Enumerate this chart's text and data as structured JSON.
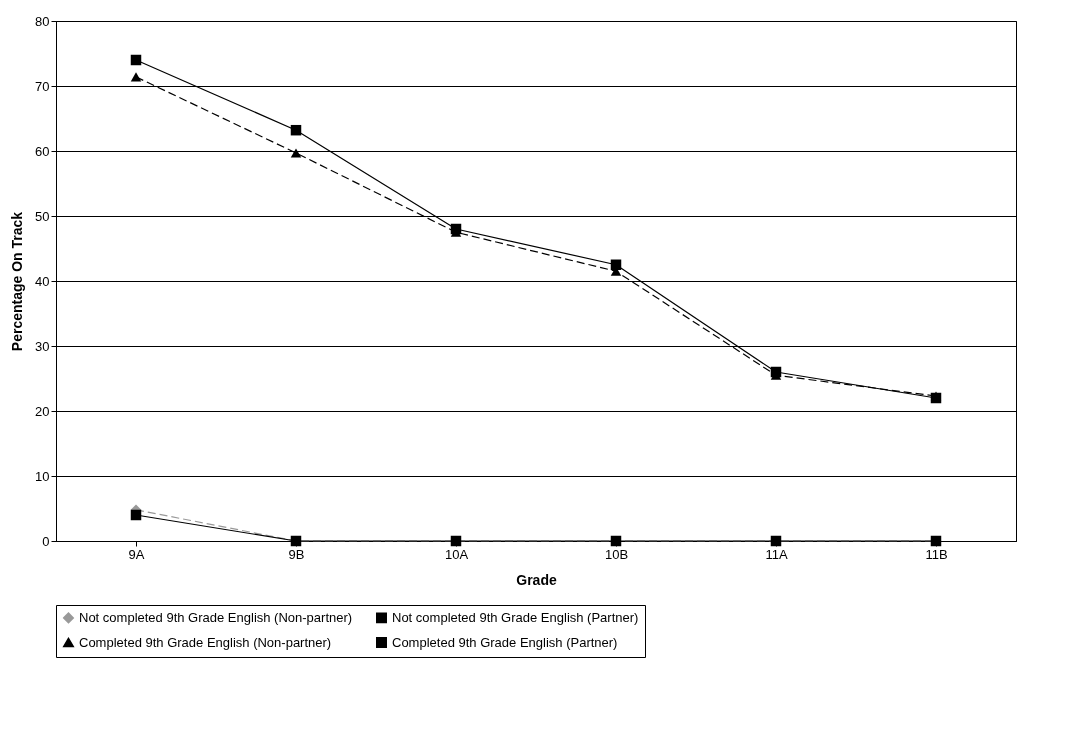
{
  "chart_data": {
    "type": "line",
    "xlabel": "Grade",
    "ylabel": "Percentage On Track",
    "categories": [
      "9A",
      "9B",
      "10A",
      "10B",
      "11A",
      "11B"
    ],
    "series": [
      {
        "name": "Not completed 9th Grade English (Non-partner)",
        "color": "#999999",
        "marker": "diamond",
        "line_style": "dashed",
        "values": [
          4.8,
          0,
          0,
          0,
          0,
          0
        ]
      },
      {
        "name": "Not completed 9th Grade English (Partner)",
        "color": "#000000",
        "marker": "square",
        "line_style": "solid",
        "values": [
          4,
          0,
          0,
          0,
          0,
          0
        ]
      },
      {
        "name": "Completed 9th Grade English (Non-partner)",
        "color": "#000000",
        "marker": "triangle",
        "line_style": "dashed",
        "values": [
          71.4,
          59.7,
          47.5,
          41.5,
          25.5,
          22.3
        ]
      },
      {
        "name": "Completed 9th Grade English (Partner)",
        "color": "#000000",
        "marker": "square",
        "line_style": "solid",
        "values": [
          74,
          63.2,
          48,
          42.5,
          26,
          22
        ]
      }
    ],
    "ylim": [
      0,
      80
    ],
    "yticks": [
      0,
      10,
      20,
      30,
      40,
      50,
      60,
      70,
      80
    ],
    "grid": "y",
    "legend": "bottom"
  }
}
